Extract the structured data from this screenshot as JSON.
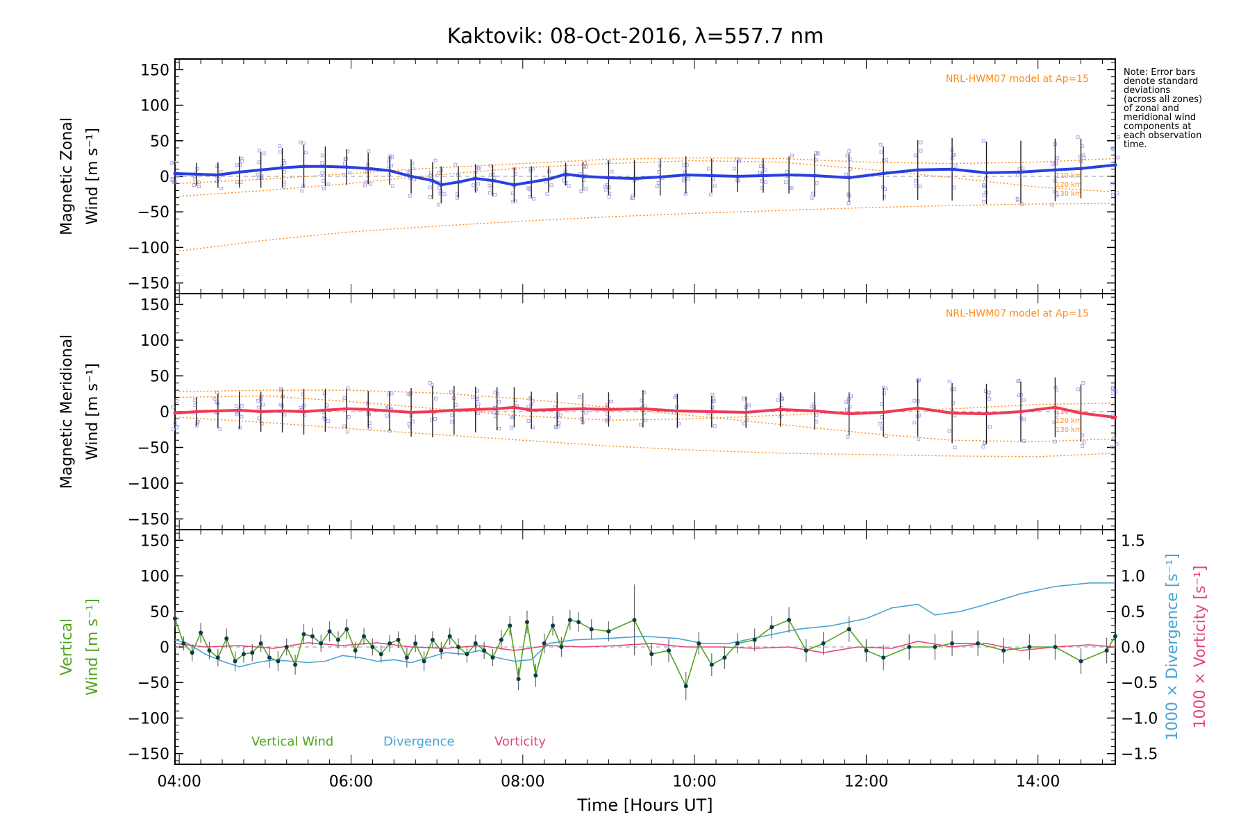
{
  "title": "Kaktovik: 08-Oct-2016, λ=557.7 nm",
  "note": [
    "Note: Error bars",
    "denote standard",
    "deviations",
    "(across all zones)",
    "of zonal and",
    "meridional wind",
    "components at",
    "each observation",
    "time."
  ],
  "colors": {
    "zonal": "#2a3fe0",
    "meridional": "#ee3a55",
    "vertical": "#4fa41e",
    "divergence": "#4aa3d6",
    "vorticity": "#e8457a",
    "model": "#ff8c1a",
    "scatter": "#a8a4e6",
    "errorbar": "#202020"
  },
  "chart_data": [
    {
      "type": "line",
      "panel": "zonal",
      "ylabel": [
        "Magnetic Zonal",
        "Wind [m s⁻¹]"
      ],
      "xlim": [
        3.95,
        14.9
      ],
      "ylim": [
        -165,
        165
      ],
      "yticks": [
        150,
        100,
        50,
        0,
        -50,
        -100,
        -150
      ],
      "model_label": "NRL-HWM07 model at Ap=15",
      "model_alt_labels": [
        "110 km",
        "120 km",
        "130 km"
      ],
      "model_curves": [
        {
          "name": "110 km",
          "x": [
            4,
            5,
            6,
            7,
            8,
            9,
            10,
            11,
            12,
            13,
            14,
            14.9
          ],
          "y": [
            -105,
            -90,
            -78,
            -70,
            -63,
            -57,
            -52,
            -48,
            -44,
            -41,
            -39,
            -38
          ]
        },
        {
          "name": "120 km",
          "x": [
            4,
            5,
            6,
            7,
            8,
            9,
            10,
            11,
            12,
            13,
            14,
            14.9
          ],
          "y": [
            -28,
            -20,
            -10,
            2,
            12,
            18,
            22,
            20,
            10,
            -2,
            -15,
            -22
          ]
        },
        {
          "name": "130 km",
          "x": [
            4,
            5,
            6,
            7,
            8,
            9,
            10,
            11,
            12,
            13,
            14,
            14.9
          ],
          "y": [
            -10,
            -4,
            4,
            12,
            18,
            24,
            26,
            25,
            20,
            18,
            20,
            25
          ]
        }
      ],
      "x": [
        3.95,
        4.2,
        4.45,
        4.7,
        4.95,
        5.2,
        5.45,
        5.7,
        5.95,
        6.2,
        6.45,
        6.7,
        6.95,
        7.05,
        7.25,
        7.45,
        7.65,
        7.9,
        8.1,
        8.3,
        8.5,
        8.7,
        9.0,
        9.3,
        9.6,
        9.9,
        10.2,
        10.5,
        10.8,
        11.1,
        11.4,
        11.8,
        12.2,
        12.6,
        13.0,
        13.4,
        13.8,
        14.2,
        14.5,
        14.9
      ],
      "y": [
        4,
        3,
        2,
        6,
        9,
        12,
        14,
        14,
        13,
        11,
        8,
        0,
        -6,
        -12,
        -8,
        -3,
        -6,
        -12,
        -8,
        -4,
        3,
        0,
        -2,
        -3,
        -1,
        2,
        1,
        0,
        1,
        2,
        1,
        -2,
        4,
        9,
        10,
        5,
        6,
        9,
        11,
        16
      ],
      "err": [
        15,
        16,
        18,
        22,
        25,
        28,
        30,
        28,
        25,
        22,
        20,
        24,
        26,
        26,
        22,
        20,
        22,
        24,
        22,
        18,
        16,
        20,
        24,
        26,
        26,
        26,
        24,
        22,
        24,
        26,
        30,
        34,
        38,
        42,
        44,
        44,
        44,
        44,
        42,
        40
      ]
    },
    {
      "type": "line",
      "panel": "meridional",
      "ylabel": [
        "Magnetic Meridional",
        "Wind [m s⁻¹]"
      ],
      "xlim": [
        3.95,
        14.9
      ],
      "ylim": [
        -165,
        165
      ],
      "yticks": [
        150,
        100,
        50,
        0,
        -50,
        -100,
        -150
      ],
      "model_label": "NRL-HWM07 model at Ap=15",
      "model_alt_labels": [
        "110 km",
        "120 km",
        "130 km"
      ],
      "model_curves": [
        {
          "name": "110 km",
          "x": [
            4,
            5,
            6,
            7,
            8,
            9,
            10,
            11,
            12,
            13,
            14,
            14.9
          ],
          "y": [
            28,
            30,
            30,
            26,
            18,
            6,
            -6,
            -18,
            -30,
            -40,
            -42,
            -38
          ]
        },
        {
          "name": "120 km",
          "x": [
            4,
            5,
            6,
            7,
            8,
            9,
            10,
            11,
            12,
            13,
            14,
            14.9
          ],
          "y": [
            20,
            22,
            14,
            4,
            -6,
            -12,
            -10,
            -5,
            0,
            4,
            10,
            12
          ]
        },
        {
          "name": "130 km",
          "x": [
            4,
            5,
            6,
            7,
            8,
            9,
            10,
            11,
            12,
            13,
            14,
            14.9
          ],
          "y": [
            -8,
            -15,
            -24,
            -32,
            -40,
            -48,
            -54,
            -58,
            -60,
            -62,
            -63,
            -58
          ]
        }
      ],
      "x": [
        3.95,
        4.2,
        4.45,
        4.7,
        4.95,
        5.2,
        5.45,
        5.7,
        5.95,
        6.2,
        6.45,
        6.7,
        6.95,
        7.2,
        7.45,
        7.7,
        7.9,
        8.1,
        8.4,
        8.7,
        9.0,
        9.4,
        9.8,
        10.2,
        10.6,
        11.0,
        11.4,
        11.8,
        12.2,
        12.6,
        13.0,
        13.4,
        13.8,
        14.2,
        14.5,
        14.9
      ],
      "y": [
        -2,
        0,
        1,
        2,
        0,
        1,
        0,
        2,
        4,
        3,
        1,
        -1,
        0,
        2,
        3,
        4,
        6,
        2,
        3,
        4,
        3,
        4,
        1,
        0,
        -1,
        3,
        1,
        -3,
        -1,
        5,
        -2,
        -3,
        0,
        6,
        -2,
        -8
      ],
      "err": [
        22,
        20,
        24,
        26,
        28,
        30,
        32,
        30,
        28,
        26,
        28,
        34,
        36,
        34,
        32,
        30,
        28,
        26,
        24,
        22,
        24,
        26,
        24,
        22,
        22,
        24,
        26,
        30,
        34,
        40,
        42,
        42,
        42,
        42,
        40,
        38
      ]
    },
    {
      "type": "line",
      "panel": "vertical",
      "ylabel": [
        "Vertical",
        "Wind [m s⁻¹]"
      ],
      "y2label": [
        "1000 × Divergence [s⁻¹]",
        "1000 × Vorticity [s⁻¹]"
      ],
      "xlabel": "Time [Hours UT]",
      "xlim": [
        3.95,
        14.9
      ],
      "xticks": [
        "04:00",
        "06:00",
        "08:00",
        "10:00",
        "12:00",
        "14:00"
      ],
      "xtick_values": [
        4,
        6,
        8,
        10,
        12,
        14
      ],
      "ylim": [
        -165,
        165
      ],
      "yticks": [
        150,
        100,
        50,
        0,
        -50,
        -100,
        -150
      ],
      "y2lim": [
        -1.65,
        1.65
      ],
      "y2ticks": [
        1.5,
        1.0,
        0.5,
        0.0,
        -0.5,
        -1.0,
        -1.5
      ],
      "legend_position": "bottom-left",
      "series": [
        {
          "name": "Vertical Wind",
          "axis": "left",
          "x": [
            3.95,
            4.05,
            4.15,
            4.25,
            4.35,
            4.45,
            4.55,
            4.65,
            4.75,
            4.85,
            4.95,
            5.05,
            5.15,
            5.25,
            5.35,
            5.45,
            5.55,
            5.65,
            5.75,
            5.85,
            5.95,
            6.05,
            6.15,
            6.25,
            6.35,
            6.45,
            6.55,
            6.65,
            6.75,
            6.85,
            6.95,
            7.05,
            7.15,
            7.25,
            7.35,
            7.45,
            7.55,
            7.65,
            7.75,
            7.85,
            7.95,
            8.05,
            8.15,
            8.25,
            8.35,
            8.45,
            8.55,
            8.65,
            8.8,
            9.0,
            9.3,
            9.5,
            9.7,
            9.9,
            10.05,
            10.2,
            10.35,
            10.5,
            10.7,
            10.9,
            11.1,
            11.3,
            11.5,
            11.8,
            12.0,
            12.2,
            12.5,
            12.8,
            13.0,
            13.3,
            13.6,
            13.9,
            14.2,
            14.5,
            14.8,
            14.9
          ],
          "y": [
            40,
            5,
            -8,
            20,
            -5,
            -15,
            12,
            -20,
            -10,
            -8,
            5,
            -15,
            -20,
            0,
            -25,
            18,
            15,
            5,
            22,
            10,
            25,
            -5,
            15,
            0,
            -10,
            5,
            10,
            -15,
            5,
            -20,
            10,
            -5,
            15,
            0,
            -10,
            5,
            -5,
            -15,
            10,
            30,
            -45,
            35,
            -40,
            5,
            30,
            0,
            38,
            35,
            25,
            22,
            38,
            -10,
            -5,
            -55,
            5,
            -25,
            -15,
            5,
            10,
            28,
            38,
            -5,
            5,
            25,
            -5,
            -15,
            0,
            0,
            5,
            5,
            -5,
            0,
            0,
            -20,
            -5,
            15
          ],
          "yerr": [
            12,
            10,
            12,
            14,
            12,
            12,
            14,
            14,
            12,
            12,
            12,
            14,
            14,
            12,
            14,
            14,
            12,
            12,
            14,
            12,
            14,
            12,
            12,
            12,
            12,
            12,
            12,
            14,
            12,
            14,
            12,
            12,
            12,
            12,
            12,
            12,
            12,
            12,
            14,
            14,
            16,
            16,
            16,
            14,
            14,
            14,
            14,
            14,
            14,
            14,
            50,
            16,
            16,
            20,
            16,
            16,
            16,
            14,
            16,
            16,
            18,
            16,
            16,
            18,
            16,
            18,
            18,
            18,
            18,
            18,
            18,
            18,
            18,
            18,
            18,
            18
          ]
        },
        {
          "name": "Divergence",
          "axis": "right",
          "x": [
            3.95,
            4.1,
            4.3,
            4.5,
            4.7,
            4.9,
            5.1,
            5.3,
            5.5,
            5.7,
            5.9,
            6.1,
            6.3,
            6.5,
            6.7,
            6.9,
            7.1,
            7.3,
            7.5,
            7.7,
            7.9,
            8.1,
            8.3,
            8.6,
            9.0,
            9.4,
            9.8,
            10.1,
            10.4,
            10.8,
            11.2,
            11.6,
            12.0,
            12.3,
            12.6,
            12.8,
            13.1,
            13.4,
            13.8,
            14.2,
            14.6,
            14.9
          ],
          "y": [
            0.1,
            0.05,
            -0.1,
            -0.2,
            -0.28,
            -0.22,
            -0.18,
            -0.2,
            -0.22,
            -0.2,
            -0.12,
            -0.15,
            -0.2,
            -0.18,
            -0.22,
            -0.15,
            -0.08,
            -0.1,
            -0.05,
            -0.15,
            -0.2,
            -0.18,
            0.05,
            0.1,
            0.12,
            0.15,
            0.12,
            0.05,
            0.05,
            0.15,
            0.25,
            0.3,
            0.4,
            0.55,
            0.6,
            0.45,
            0.5,
            0.6,
            0.75,
            0.85,
            0.9,
            0.9
          ]
        },
        {
          "name": "Vorticity",
          "axis": "right",
          "x": [
            3.95,
            4.3,
            4.7,
            5.1,
            5.5,
            5.9,
            6.3,
            6.7,
            7.1,
            7.5,
            7.9,
            8.3,
            8.7,
            9.1,
            9.5,
            9.9,
            10.3,
            10.7,
            11.1,
            11.5,
            11.9,
            12.3,
            12.6,
            13.0,
            13.4,
            13.8,
            14.2,
            14.6,
            14.9
          ],
          "y": [
            0.05,
            0.0,
            0.02,
            -0.02,
            0.06,
            0.02,
            0.06,
            0.0,
            -0.02,
            0.02,
            -0.05,
            0.02,
            0.0,
            0.02,
            0.05,
            0.0,
            0.0,
            -0.02,
            0.0,
            -0.08,
            0.0,
            -0.02,
            0.08,
            0.0,
            0.05,
            -0.05,
            0.0,
            0.03,
            0.0
          ]
        }
      ]
    }
  ]
}
